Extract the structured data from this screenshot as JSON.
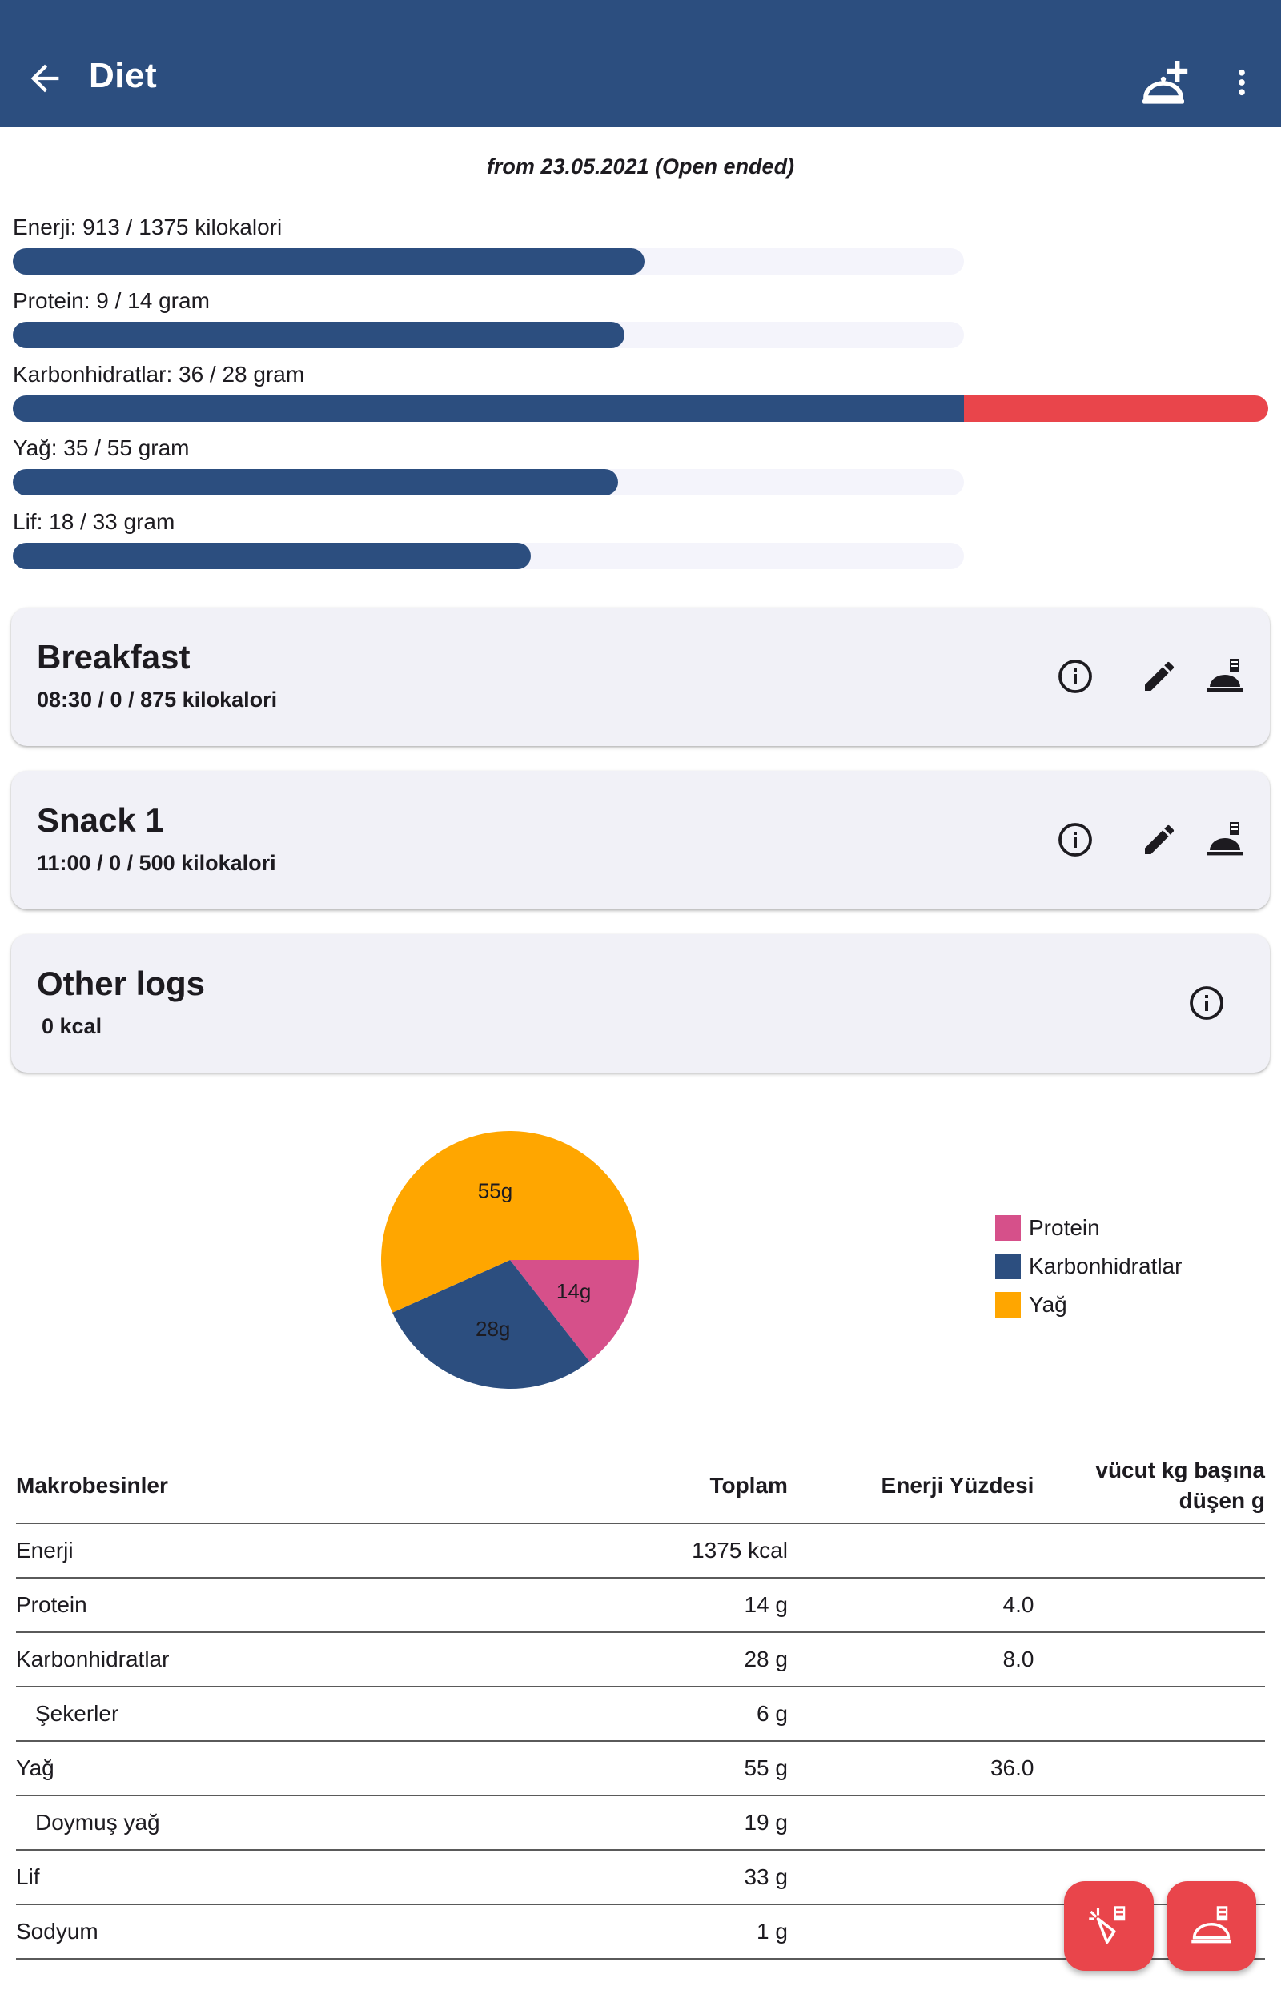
{
  "appbar": {
    "title": "Diet",
    "back_icon": "arrow-back-icon",
    "add_icon": "add-meal-plate-icon",
    "more_icon": "more-vert-icon"
  },
  "plan": {
    "date_range": "from 23.05.2021 (Open ended)"
  },
  "progress": [
    {
      "label": "Enerji: 913 / 1375 kilokalori",
      "fraction": 0.664
    },
    {
      "label": "Protein: 9 / 14 gram",
      "fraction": 0.643
    },
    {
      "label": "Karbonhidratlar: 36 / 28 gram",
      "fraction": 1.286
    },
    {
      "label": "Yağ: 35 / 55 gram",
      "fraction": 0.636
    },
    {
      "label": "Lif: 18 / 33 gram",
      "fraction": 0.545
    }
  ],
  "meals": [
    {
      "title": "Breakfast",
      "subtitle": "08:30 /  0 / 875 kilokalori"
    },
    {
      "title": "Snack 1",
      "subtitle": "11:00 /  0 / 500 kilokalori"
    }
  ],
  "other_logs": {
    "title": "Other logs",
    "subtitle": "0 kcal"
  },
  "chart_data": {
    "type": "pie",
    "slices": [
      {
        "name": "Protein",
        "value": 14,
        "label": "14g",
        "color": "#d6508a"
      },
      {
        "name": "Karbonhidratlar",
        "value": 28,
        "label": "28g",
        "color": "#2c4e7f"
      },
      {
        "name": "Yağ",
        "value": 55,
        "label": "55g",
        "color": "#ffa600"
      }
    ],
    "legend_position": "right"
  },
  "table": {
    "headers": [
      "Makrobesinler",
      "Toplam",
      "Enerji Yüzdesi",
      "vücut kg başına düşen g"
    ],
    "rows": [
      {
        "name": "Enerji",
        "total": "1375 kcal",
        "pct": "",
        "perkg": "",
        "indent": false
      },
      {
        "name": "Protein",
        "total": "14 g",
        "pct": "4.0",
        "perkg": "",
        "indent": false
      },
      {
        "name": "Karbonhidratlar",
        "total": "28 g",
        "pct": "8.0",
        "perkg": "",
        "indent": false
      },
      {
        "name": "Şekerler",
        "total": "6 g",
        "pct": "",
        "perkg": "",
        "indent": true
      },
      {
        "name": "Yağ",
        "total": "55 g",
        "pct": "36.0",
        "perkg": "",
        "indent": false
      },
      {
        "name": "Doymuş yağ",
        "total": "19 g",
        "pct": "",
        "perkg": "",
        "indent": true
      },
      {
        "name": "Lif",
        "total": "33 g",
        "pct": "",
        "perkg": "",
        "indent": false
      },
      {
        "name": "Sodyum",
        "total": "1 g",
        "pct": "",
        "perkg": "",
        "indent": false
      }
    ]
  },
  "fabs": [
    {
      "icon": "log-ingredient-icon"
    },
    {
      "icon": "log-meal-icon"
    }
  ],
  "colors": {
    "primary": "#2c4e7f",
    "over": "#e9454b",
    "track": "#f4f4fb"
  }
}
